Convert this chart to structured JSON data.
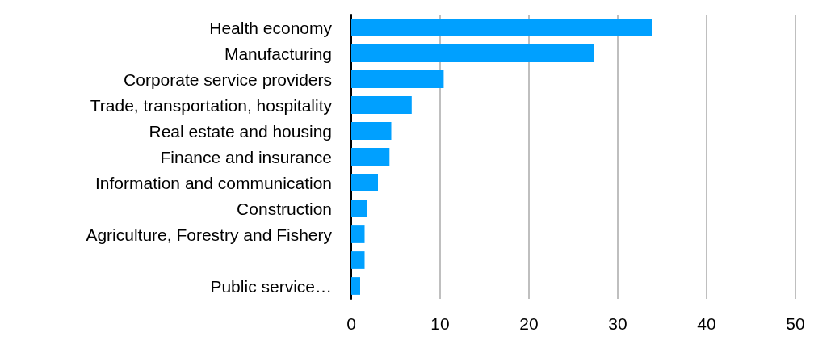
{
  "chart_data": {
    "type": "bar",
    "orientation": "horizontal",
    "categories": [
      "Health economy",
      "Manufacturing",
      "Corporate service providers",
      "Trade, transportation, hospitality",
      "Real estate and housing",
      "Finance and insurance",
      "Information and communication",
      "Construction",
      "Agriculture, Forestry and Fishery",
      null,
      "Public service…"
    ],
    "values": [
      33.9,
      27.3,
      10.4,
      6.8,
      4.5,
      4.3,
      3.0,
      1.8,
      1.5,
      1.5,
      1.0
    ],
    "color": "#00a0ff",
    "xlim": [
      0,
      50
    ],
    "xticks": [
      0,
      10,
      20,
      30,
      40,
      50
    ],
    "grid": "x"
  }
}
